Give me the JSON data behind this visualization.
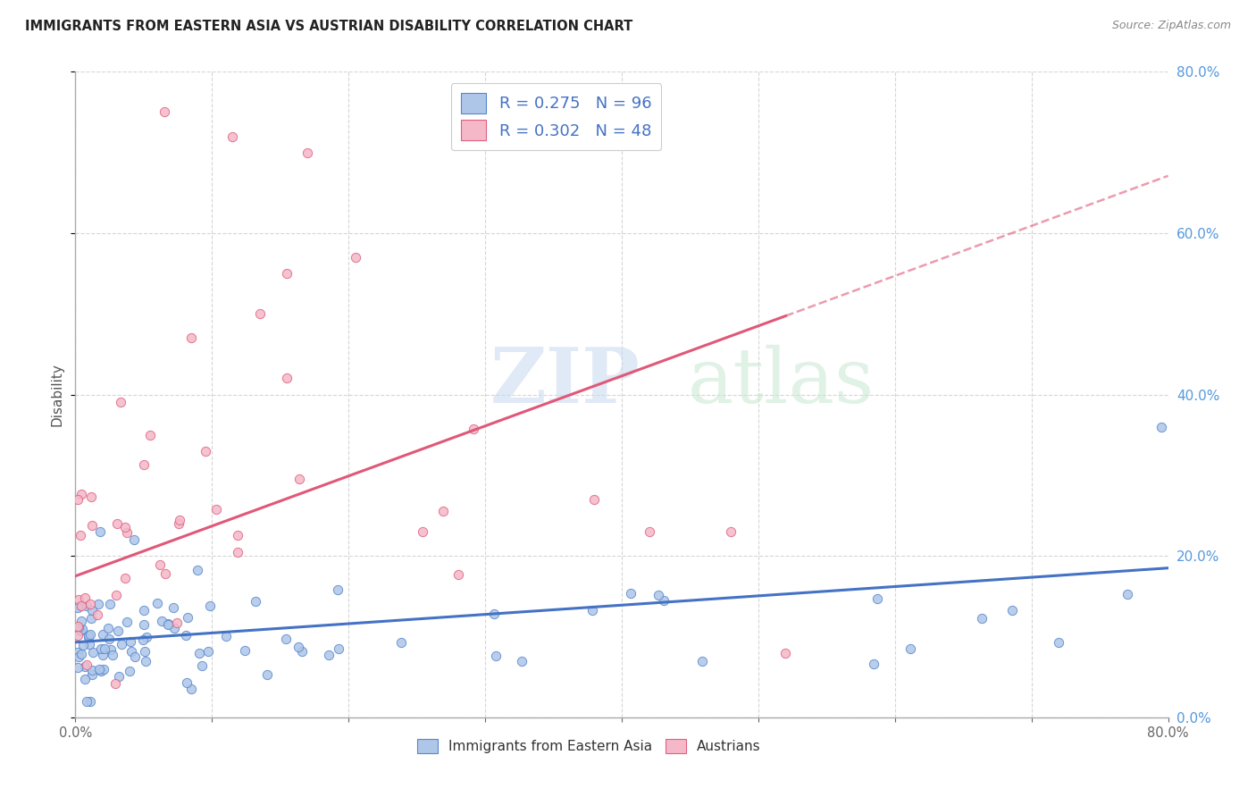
{
  "title": "IMMIGRANTS FROM EASTERN ASIA VS AUSTRIAN DISABILITY CORRELATION CHART",
  "source": "Source: ZipAtlas.com",
  "ylabel": "Disability",
  "xlim": [
    0.0,
    0.8
  ],
  "ylim": [
    0.0,
    0.8
  ],
  "blue_R": 0.275,
  "blue_N": 96,
  "pink_R": 0.302,
  "pink_N": 48,
  "blue_color": "#aec6e8",
  "pink_color": "#f4b8c8",
  "blue_edge_color": "#5588cc",
  "pink_edge_color": "#e06080",
  "blue_line_color": "#4472c4",
  "pink_line_color": "#e05878",
  "legend_label_blue": "Immigrants from Eastern Asia",
  "legend_label_pink": "Austrians",
  "background_color": "#ffffff",
  "grid_color": "#cccccc",
  "right_label_color": "#5599dd",
  "seed_blue": 42,
  "seed_pink": 99
}
